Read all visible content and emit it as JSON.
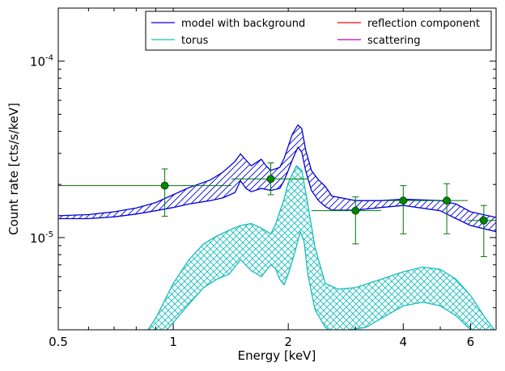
{
  "chart_data": {
    "type": "line",
    "xlabel": "Energy [keV]",
    "ylabel": "Count rate [cts/s/keV]",
    "x_scale": "log",
    "y_scale": "log",
    "xlim": [
      0.5,
      7.0
    ],
    "ylim": [
      3e-06,
      0.0002
    ],
    "grid": false,
    "legend": {
      "placement": "top-right",
      "columns": 2,
      "entries": [
        {
          "label": "model with background",
          "color": "#0000dd"
        },
        {
          "label": "reflection component",
          "color": "#ff0000"
        },
        {
          "label": "torus",
          "color": "#17bebe"
        },
        {
          "label": "scattering",
          "color": "#bb00bb"
        }
      ]
    },
    "x_ticks": [
      {
        "value": 0.5,
        "label": "0.5"
      },
      {
        "value": 1,
        "label": "1"
      },
      {
        "value": 2,
        "label": "2"
      },
      {
        "value": 4,
        "label": "4"
      },
      {
        "value": 6,
        "label": "6"
      }
    ],
    "y_ticks": [
      {
        "value": 1e-05,
        "base": "10",
        "exp": "-5"
      },
      {
        "value": 0.0001,
        "base": "10",
        "exp": "-4"
      }
    ],
    "series": [
      {
        "name": "model with background",
        "color": "#0000dd",
        "hatch": "diagonal",
        "upper": [
          [
            0.5,
            1.33e-05
          ],
          [
            0.6,
            1.35e-05
          ],
          [
            0.7,
            1.4e-05
          ],
          [
            0.8,
            1.47e-05
          ],
          [
            0.9,
            1.58e-05
          ],
          [
            1.0,
            1.75e-05
          ],
          [
            1.1,
            1.92e-05
          ],
          [
            1.25,
            2.12e-05
          ],
          [
            1.35,
            2.35e-05
          ],
          [
            1.45,
            2.7e-05
          ],
          [
            1.5,
            2.98e-05
          ],
          [
            1.55,
            2.75e-05
          ],
          [
            1.6,
            2.55e-05
          ],
          [
            1.7,
            2.78e-05
          ],
          [
            1.75,
            2.55e-05
          ],
          [
            1.8,
            2.4e-05
          ],
          [
            1.9,
            2.5e-05
          ],
          [
            1.95,
            2.8e-05
          ],
          [
            2.0,
            3.3e-05
          ],
          [
            2.05,
            3.85e-05
          ],
          [
            2.12,
            4.35e-05
          ],
          [
            2.17,
            4.15e-05
          ],
          [
            2.22,
            3.15e-05
          ],
          [
            2.3,
            2.4e-05
          ],
          [
            2.4,
            2.12e-05
          ],
          [
            2.5,
            1.95e-05
          ],
          [
            2.6,
            1.72e-05
          ],
          [
            3.0,
            1.62e-05
          ],
          [
            3.5,
            1.62e-05
          ],
          [
            4.0,
            1.65e-05
          ],
          [
            5.0,
            1.62e-05
          ],
          [
            5.5,
            1.55e-05
          ],
          [
            6.0,
            1.4e-05
          ],
          [
            7.0,
            1.3e-05
          ]
        ],
        "lower": [
          [
            0.5,
            1.28e-05
          ],
          [
            0.6,
            1.28e-05
          ],
          [
            0.7,
            1.31e-05
          ],
          [
            0.8,
            1.36e-05
          ],
          [
            0.9,
            1.42e-05
          ],
          [
            1.0,
            1.48e-05
          ],
          [
            1.1,
            1.55e-05
          ],
          [
            1.25,
            1.62e-05
          ],
          [
            1.35,
            1.68e-05
          ],
          [
            1.45,
            1.8e-05
          ],
          [
            1.5,
            2.1e-05
          ],
          [
            1.55,
            1.9e-05
          ],
          [
            1.6,
            1.82e-05
          ],
          [
            1.7,
            1.9e-05
          ],
          [
            1.8,
            1.85e-05
          ],
          [
            1.9,
            1.9e-05
          ],
          [
            1.95,
            2.1e-05
          ],
          [
            2.0,
            2.4e-05
          ],
          [
            2.05,
            2.75e-05
          ],
          [
            2.12,
            3.25e-05
          ],
          [
            2.17,
            3.05e-05
          ],
          [
            2.22,
            2.4e-05
          ],
          [
            2.3,
            1.85e-05
          ],
          [
            2.4,
            1.62e-05
          ],
          [
            2.5,
            1.5e-05
          ],
          [
            2.6,
            1.43e-05
          ],
          [
            3.0,
            1.43e-05
          ],
          [
            3.5,
            1.48e-05
          ],
          [
            4.0,
            1.52e-05
          ],
          [
            5.0,
            1.42e-05
          ],
          [
            5.5,
            1.28e-05
          ],
          [
            6.0,
            1.17e-05
          ],
          [
            7.0,
            1.08e-05
          ]
        ]
      },
      {
        "name": "torus",
        "color": "#17bebe",
        "hatch": "cross",
        "upper": [
          [
            0.85,
            2.9e-06
          ],
          [
            0.9,
            3.5e-06
          ],
          [
            1.0,
            5.5e-06
          ],
          [
            1.1,
            7.5e-06
          ],
          [
            1.2,
            9.2e-06
          ],
          [
            1.3,
            1.02e-05
          ],
          [
            1.4,
            1.1e-05
          ],
          [
            1.5,
            1.17e-05
          ],
          [
            1.6,
            1.2e-05
          ],
          [
            1.7,
            1.13e-05
          ],
          [
            1.8,
            1.05e-05
          ],
          [
            1.85,
            1.18e-05
          ],
          [
            1.9,
            1.4e-05
          ],
          [
            1.95,
            1.65e-05
          ],
          [
            2.0,
            2.05e-05
          ],
          [
            2.1,
            2.55e-05
          ],
          [
            2.17,
            2.4e-05
          ],
          [
            2.25,
            1.55e-05
          ],
          [
            2.35,
            8.8e-06
          ],
          [
            2.5,
            5.5e-06
          ],
          [
            2.7,
            5.1e-06
          ],
          [
            3.0,
            5.2e-06
          ],
          [
            3.5,
            5.8e-06
          ],
          [
            4.0,
            6.4e-06
          ],
          [
            4.5,
            6.8e-06
          ],
          [
            5.0,
            6.6e-06
          ],
          [
            5.5,
            5.8e-06
          ],
          [
            6.0,
            4.7e-06
          ],
          [
            6.5,
            3.6e-06
          ],
          [
            7.0,
            2.9e-06
          ]
        ],
        "lower": [
          [
            0.95,
            2.9e-06
          ],
          [
            1.0,
            3.3e-06
          ],
          [
            1.1,
            4.2e-06
          ],
          [
            1.2,
            5.2e-06
          ],
          [
            1.3,
            5.8e-06
          ],
          [
            1.4,
            6.2e-06
          ],
          [
            1.5,
            7.5e-06
          ],
          [
            1.6,
            6.5e-06
          ],
          [
            1.7,
            6e-06
          ],
          [
            1.8,
            7e-06
          ],
          [
            1.85,
            6.7e-06
          ],
          [
            1.9,
            5.8e-06
          ],
          [
            1.95,
            5.4e-06
          ],
          [
            2.0,
            6.2e-06
          ],
          [
            2.08,
            8.2e-06
          ],
          [
            2.15,
            1.08e-05
          ],
          [
            2.2,
            9.5e-06
          ],
          [
            2.25,
            6.2e-06
          ],
          [
            2.35,
            3.9e-06
          ],
          [
            2.5,
            3.1e-06
          ],
          [
            2.6,
            2.9e-06
          ],
          [
            3.2,
            3.1e-06
          ],
          [
            3.6,
            3.6e-06
          ],
          [
            4.0,
            4.1e-06
          ],
          [
            4.5,
            4.3e-06
          ],
          [
            5.0,
            4.1e-06
          ],
          [
            5.5,
            3.6e-06
          ],
          [
            6.0,
            3e-06
          ],
          [
            6.2,
            2.9e-06
          ]
        ]
      },
      {
        "name": "data",
        "color": "#007700",
        "points": [
          {
            "x": 0.95,
            "y": 1.97e-05,
            "xlo": 0.5,
            "xhi": 1.42,
            "ylo": 1.32e-05,
            "yhi": 2.45e-05
          },
          {
            "x": 1.8,
            "y": 2.15e-05,
            "xlo": 1.42,
            "xhi": 2.25,
            "ylo": 1.75e-05,
            "yhi": 2.65e-05
          },
          {
            "x": 3.0,
            "y": 1.42e-05,
            "xlo": 2.3,
            "xhi": 3.5,
            "ylo": 9.2e-06,
            "yhi": 1.7e-05
          },
          {
            "x": 4.0,
            "y": 1.62e-05,
            "xlo": 3.6,
            "xhi": 4.6,
            "ylo": 1.05e-05,
            "yhi": 1.97e-05
          },
          {
            "x": 5.2,
            "y": 1.62e-05,
            "xlo": 4.6,
            "xhi": 5.9,
            "ylo": 1.05e-05,
            "yhi": 2.02e-05
          },
          {
            "x": 6.5,
            "y": 1.25e-05,
            "xlo": 5.9,
            "xhi": 7.0,
            "ylo": 7.8e-06,
            "yhi": 1.52e-05
          }
        ]
      }
    ]
  }
}
